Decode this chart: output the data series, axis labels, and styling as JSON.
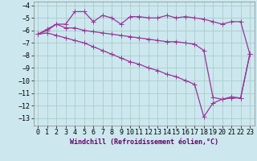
{
  "background_color": "#cce8ee",
  "grid_color": "#aacccc",
  "line_color": "#993399",
  "xlim": [
    -0.5,
    23.5
  ],
  "ylim": [
    -13.6,
    -3.7
  ],
  "x_ticks": [
    0,
    1,
    2,
    3,
    4,
    5,
    6,
    7,
    8,
    9,
    10,
    11,
    12,
    13,
    14,
    15,
    16,
    17,
    18,
    19,
    20,
    21,
    22,
    23
  ],
  "y_ticks": [
    -13,
    -12,
    -11,
    -10,
    -9,
    -8,
    -7,
    -6,
    -5,
    -4
  ],
  "xlabel": "Windchill (Refroidissement éolien,°C)",
  "line1_x": [
    0,
    1,
    2,
    3,
    4,
    5,
    6,
    7,
    8,
    9,
    10,
    11,
    12,
    13,
    14,
    15,
    16,
    17,
    18,
    19,
    20,
    21,
    22,
    23
  ],
  "line1_y": [
    -6.3,
    -6.0,
    -5.5,
    -5.5,
    -4.5,
    -4.5,
    -5.3,
    -4.8,
    -5.0,
    -5.5,
    -4.9,
    -4.9,
    -5.0,
    -5.0,
    -4.8,
    -5.0,
    -4.9,
    -5.0,
    -5.1,
    -5.3,
    -5.5,
    -5.3,
    -5.3,
    -7.9
  ],
  "line2_x": [
    0,
    1,
    2,
    3,
    4,
    5,
    6,
    7,
    8,
    9,
    10,
    11,
    12,
    13,
    14,
    15,
    16,
    17,
    18,
    19,
    20,
    21,
    22,
    23
  ],
  "line2_y": [
    -6.3,
    -5.9,
    -5.5,
    -5.8,
    -5.8,
    -6.0,
    -6.1,
    -6.2,
    -6.3,
    -6.4,
    -6.5,
    -6.6,
    -6.7,
    -6.8,
    -6.9,
    -6.9,
    -7.0,
    -7.1,
    -7.6,
    -11.35,
    -11.5,
    -11.3,
    -11.4,
    -7.9
  ],
  "line3_x": [
    0,
    1,
    2,
    3,
    4,
    5,
    6,
    7,
    8,
    9,
    10,
    11,
    12,
    13,
    14,
    15,
    16,
    17,
    18,
    19,
    20,
    21,
    22,
    23
  ],
  "line3_y": [
    -6.3,
    -6.2,
    -6.4,
    -6.6,
    -6.8,
    -7.0,
    -7.3,
    -7.6,
    -7.9,
    -8.2,
    -8.5,
    -8.7,
    -9.0,
    -9.2,
    -9.5,
    -9.7,
    -10.0,
    -10.3,
    -12.9,
    -11.8,
    -11.5,
    -11.4,
    -11.4,
    -7.9
  ],
  "marker_size": 2.0,
  "linewidth": 0.9,
  "tick_fontsize": 6.0,
  "xlabel_fontsize": 6.0
}
